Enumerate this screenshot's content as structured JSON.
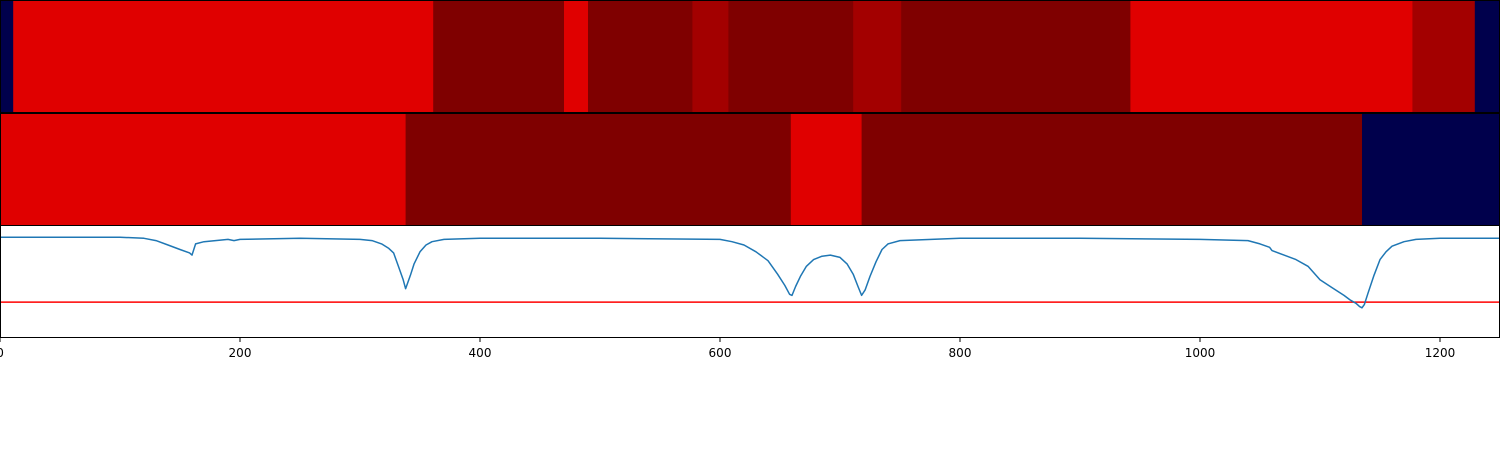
{
  "chart_data": [
    {
      "type": "heatmap",
      "colormap": "seismic",
      "xlim": [
        0,
        1250
      ],
      "cells": [
        {
          "x0": 0,
          "x1": 11,
          "value": -1.0
        },
        {
          "x0": 11,
          "x1": 361,
          "value": 0.62
        },
        {
          "x0": 361,
          "x1": 470,
          "value": 1.0
        },
        {
          "x0": 470,
          "x1": 490,
          "value": 0.62
        },
        {
          "x0": 490,
          "x1": 577,
          "value": 1.0
        },
        {
          "x0": 577,
          "x1": 607,
          "value": 0.86
        },
        {
          "x0": 607,
          "x1": 711,
          "value": 1.0
        },
        {
          "x0": 711,
          "x1": 751,
          "value": 0.86
        },
        {
          "x0": 751,
          "x1": 942,
          "value": 1.0
        },
        {
          "x0": 942,
          "x1": 1177,
          "value": 0.62
        },
        {
          "x0": 1177,
          "x1": 1229,
          "value": 0.86
        },
        {
          "x0": 1229,
          "x1": 1250,
          "value": -1.0
        }
      ]
    },
    {
      "type": "heatmap",
      "colormap": "seismic",
      "xlim": [
        0,
        1250
      ],
      "cells": [
        {
          "x0": 0,
          "x1": 338,
          "value": 0.62
        },
        {
          "x0": 338,
          "x1": 659,
          "value": 1.0
        },
        {
          "x0": 659,
          "x1": 718,
          "value": 0.62
        },
        {
          "x0": 718,
          "x1": 1135,
          "value": 1.0
        },
        {
          "x0": 1135,
          "x1": 1250,
          "value": -1.0
        }
      ]
    },
    {
      "type": "line",
      "xlim": [
        0,
        1250
      ],
      "ylim": [
        -0.9,
        0.1
      ],
      "xticks": [
        0,
        200,
        400,
        600,
        800,
        1000,
        1200
      ],
      "xtick_labels": [
        "0",
        "200",
        "400",
        "600",
        "800",
        "1000",
        "1200"
      ],
      "threshold": {
        "y": -0.58,
        "color": "#ff0000"
      },
      "line_color": "#1f77b4",
      "x": [
        0,
        100,
        120,
        130,
        140,
        150,
        158,
        160,
        163,
        170,
        190,
        195,
        200,
        250,
        300,
        310,
        318,
        324,
        328,
        332,
        336,
        338,
        340,
        342,
        345,
        350,
        355,
        360,
        370,
        400,
        500,
        600,
        610,
        620,
        630,
        640,
        648,
        654,
        658,
        660,
        663,
        667,
        672,
        678,
        685,
        692,
        700,
        706,
        711,
        715,
        718,
        721,
        725,
        730,
        735,
        740,
        750,
        800,
        900,
        1000,
        1040,
        1050,
        1058,
        1060,
        1070,
        1080,
        1090,
        1095,
        1100,
        1110,
        1120,
        1125,
        1130,
        1133,
        1135,
        1137,
        1140,
        1145,
        1150,
        1155,
        1160,
        1170,
        1180,
        1200,
        1250
      ],
      "y": [
        0,
        0,
        -0.01,
        -0.03,
        -0.07,
        -0.11,
        -0.14,
        -0.16,
        -0.06,
        -0.04,
        -0.02,
        -0.03,
        -0.02,
        -0.01,
        -0.02,
        -0.03,
        -0.06,
        -0.1,
        -0.14,
        -0.26,
        -0.38,
        -0.46,
        -0.4,
        -0.34,
        -0.24,
        -0.13,
        -0.07,
        -0.04,
        -0.02,
        -0.01,
        -0.01,
        -0.02,
        -0.04,
        -0.07,
        -0.13,
        -0.21,
        -0.33,
        -0.43,
        -0.51,
        -0.52,
        -0.44,
        -0.35,
        -0.26,
        -0.2,
        -0.17,
        -0.16,
        -0.18,
        -0.24,
        -0.33,
        -0.44,
        -0.52,
        -0.47,
        -0.35,
        -0.22,
        -0.11,
        -0.06,
        -0.03,
        -0.01,
        -0.01,
        -0.02,
        -0.03,
        -0.06,
        -0.09,
        -0.12,
        -0.16,
        -0.2,
        -0.26,
        -0.32,
        -0.38,
        -0.45,
        -0.52,
        -0.56,
        -0.59,
        -0.62,
        -0.63,
        -0.6,
        -0.5,
        -0.34,
        -0.2,
        -0.13,
        -0.08,
        -0.04,
        -0.02,
        -0.01,
        -0.01
      ]
    }
  ]
}
